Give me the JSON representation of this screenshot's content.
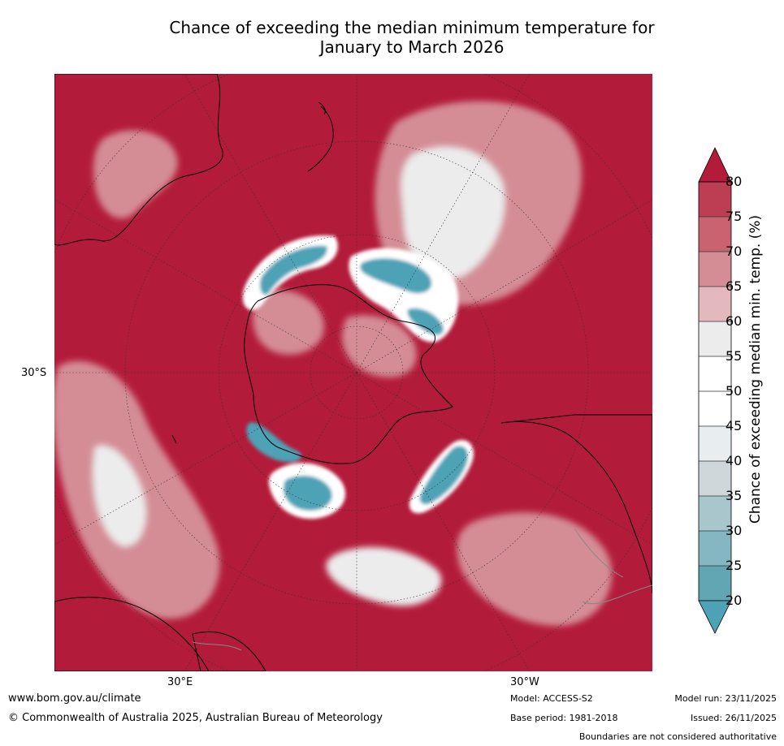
{
  "title_line1": "Chance of exceeding the median minimum temperature for",
  "title_line2": "January to March 2026",
  "lat_label": "30°S",
  "lon_labels": [
    "30°E",
    "30°W"
  ],
  "colorbar": {
    "title": "Chance of exceeding median min. temp. (%)",
    "ticks": [
      "80",
      "75",
      "70",
      "65",
      "60",
      "55",
      "50",
      "45",
      "40",
      "35",
      "30",
      "25",
      "20"
    ],
    "colors_high_to_low": [
      "#b31b3a",
      "#bd3d52",
      "#c8636f",
      "#d48d95",
      "#e3b9bd",
      "#ececec",
      "#ffffff",
      "#ffffff",
      "#e8edf0",
      "#d0d7da",
      "#a9c6cc",
      "#85b7c3",
      "#62a6b3"
    ],
    "overflow_high": "#b31b3a",
    "overflow_low": "#4da2b6"
  },
  "map": {
    "base_color": "#b31b3a",
    "land_outline": "#000000",
    "border_color": "#888888"
  },
  "footer": {
    "website": "www.bom.gov.au/climate",
    "copyright": "© Commonwealth of Australia 2025, Australian Bureau of Meteorology",
    "model": "Model: ACCESS-S2",
    "base_period": "Base period: 1981-2018",
    "model_run": "Model run: 23/11/2025",
    "issued": "Issued: 26/11/2025",
    "disclaimer": "Boundaries are not considered authoritative"
  }
}
